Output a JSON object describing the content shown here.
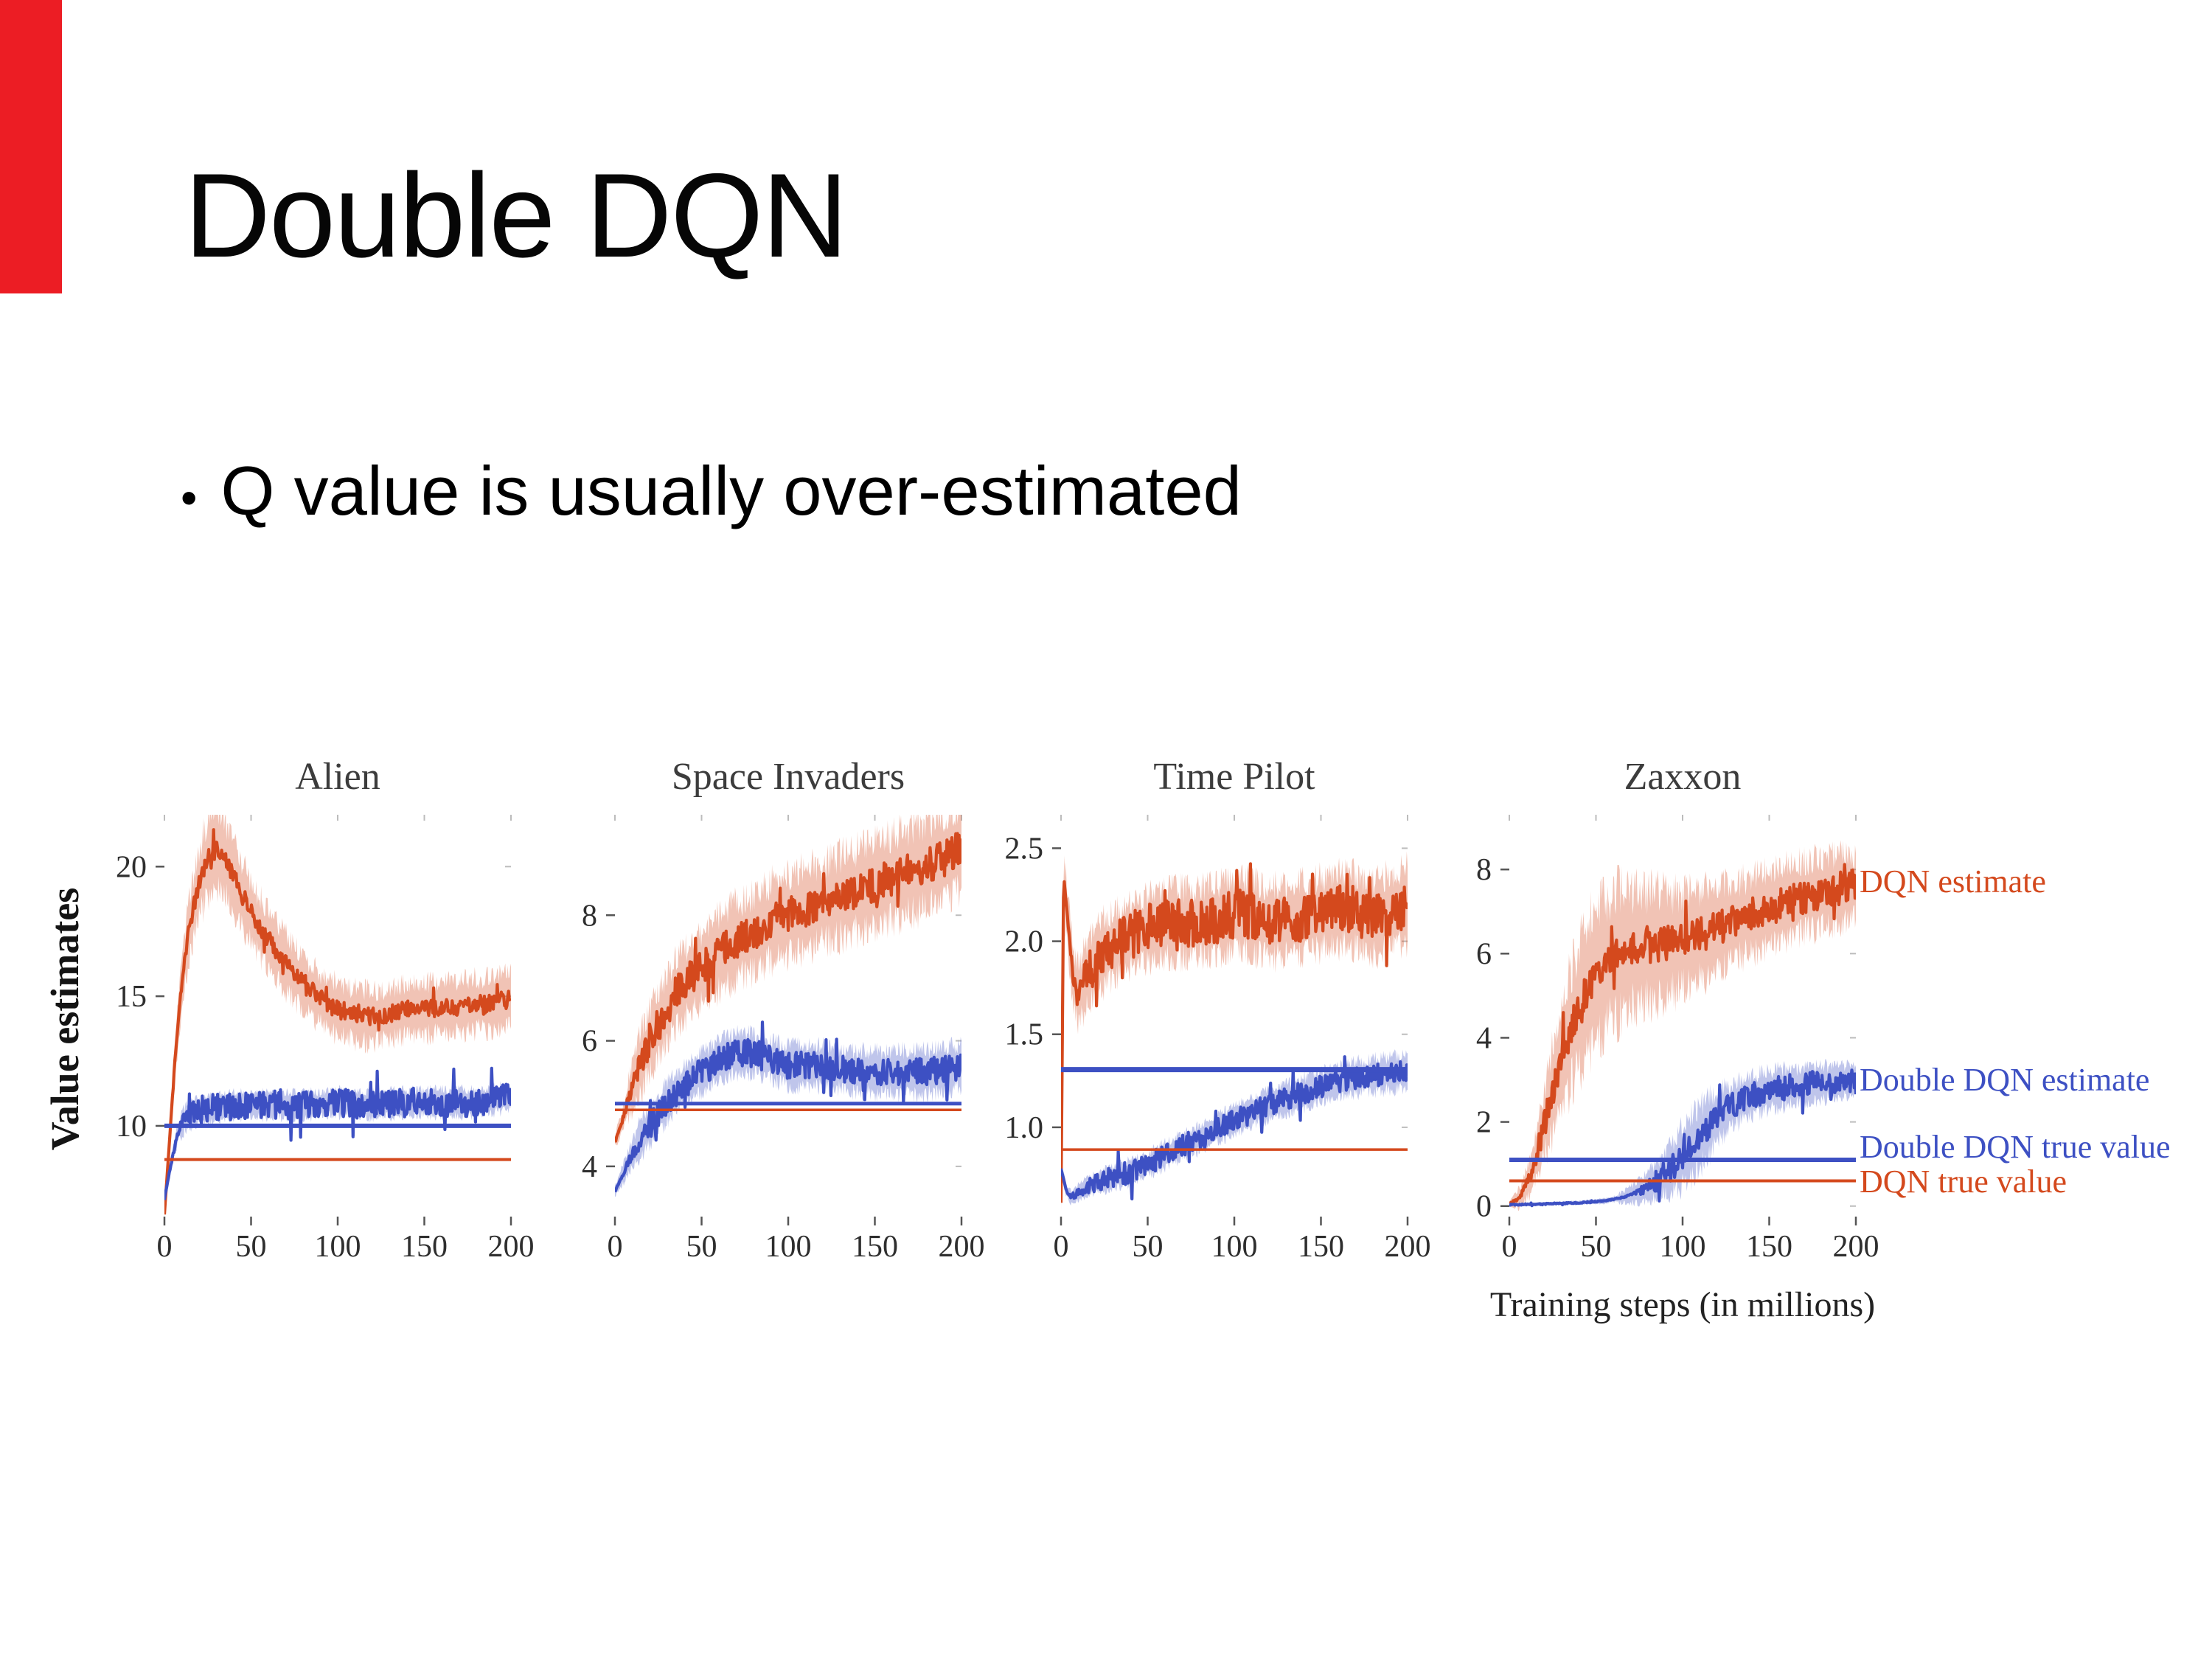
{
  "slide": {
    "title": "Double DQN",
    "bullet_char": "•",
    "bullet": "Q value is usually over-estimated",
    "accent_bar_color": "#ec1d24",
    "background": "#ffffff"
  },
  "figure": {
    "ylabel": "Value estimates",
    "xlabel": "Training steps (in millions)",
    "dqn_color": "#d4491d",
    "ddqn_color": "#3d50c3",
    "legend": [
      {
        "label": "DQN estimate",
        "color": "#d4491d",
        "anchor_y": 7.7
      },
      {
        "label": "Double DQN estimate",
        "color": "#3d50c3",
        "anchor_y": 3.0
      },
      {
        "label": "Double DQN true value",
        "color": "#3d50c3",
        "anchor_y": 1.4
      },
      {
        "label": "DQN true value",
        "color": "#d4491d",
        "anchor_y": 0.57
      }
    ]
  },
  "chart_data": [
    {
      "type": "line",
      "title": "Alien",
      "xlim": [
        0,
        200
      ],
      "ylim": [
        6.5,
        22
      ],
      "xticks": [
        0,
        50,
        100,
        150,
        200
      ],
      "xtick_labels": [
        "0",
        "50",
        "100",
        "150",
        "200"
      ],
      "yticks": [
        10,
        15,
        20
      ],
      "ytick_labels": [
        "10",
        "15",
        "20"
      ],
      "grid": false,
      "series": [
        {
          "name": "DQN estimate",
          "color": "#d4491d",
          "seed": 3,
          "noise": 0.35,
          "noise_start": 2,
          "x": [
            0,
            3,
            6,
            10,
            14,
            18,
            22,
            26,
            30,
            34,
            38,
            44,
            52,
            60,
            70,
            80,
            90,
            100,
            110,
            120,
            130,
            140,
            150,
            160,
            170,
            180,
            190,
            200
          ],
          "y": [
            6.6,
            9.5,
            12.5,
            15.5,
            17.5,
            18.8,
            19.8,
            20.4,
            20.7,
            20.4,
            19.9,
            19.0,
            18.0,
            17.2,
            16.3,
            15.5,
            14.9,
            14.5,
            14.3,
            14.2,
            14.3,
            14.5,
            14.5,
            14.6,
            14.6,
            14.7,
            14.7,
            15.0
          ],
          "band_profile": {
            "x": [
              0,
              8,
              25,
              50,
              90,
              200
            ],
            "w": [
              0.1,
              0.9,
              1.5,
              1.2,
              1.0,
              1.0
            ]
          }
        },
        {
          "name": "Double DQN estimate",
          "color": "#3d50c3",
          "seed": 7,
          "noise": 0.55,
          "noise_start": 2,
          "x": [
            0,
            4,
            8,
            12,
            20,
            30,
            40,
            60,
            80,
            100,
            120,
            140,
            160,
            180,
            200
          ],
          "y": [
            7.2,
            8.6,
            9.8,
            10.3,
            10.6,
            10.7,
            10.8,
            10.8,
            10.8,
            10.9,
            10.8,
            10.9,
            10.9,
            10.9,
            11.1
          ],
          "band_profile": {
            "x": [
              0,
              10,
              200
            ],
            "w": [
              0.08,
              0.45,
              0.5
            ]
          }
        }
      ],
      "hlines": [
        {
          "name": "Double DQN true value",
          "color": "#3d50c3",
          "y": 10.0,
          "width": 6
        },
        {
          "name": "DQN true value",
          "color": "#d4491d",
          "y": 8.7,
          "width": 4
        }
      ]
    },
    {
      "type": "line",
      "title": "Space Invaders",
      "xlim": [
        0,
        200
      ],
      "ylim": [
        3.2,
        9.6
      ],
      "xticks": [
        0,
        50,
        100,
        150,
        200
      ],
      "xtick_labels": [
        "0",
        "50",
        "100",
        "150",
        "200"
      ],
      "yticks": [
        4,
        6,
        8
      ],
      "ytick_labels": [
        "4",
        "6",
        "8"
      ],
      "grid": false,
      "series": [
        {
          "name": "DQN estimate",
          "color": "#d4491d",
          "seed": 13,
          "noise": 0.28,
          "noise_start": 2,
          "x": [
            0,
            4,
            8,
            14,
            20,
            28,
            36,
            44,
            52,
            60,
            70,
            80,
            90,
            100,
            110,
            120,
            130,
            140,
            150,
            160,
            170,
            180,
            190,
            200
          ],
          "y": [
            4.4,
            4.7,
            5.1,
            5.6,
            6.0,
            6.4,
            6.8,
            7.0,
            7.2,
            7.4,
            7.6,
            7.7,
            7.9,
            8.0,
            8.1,
            8.2,
            8.3,
            8.4,
            8.5,
            8.6,
            8.7,
            8.8,
            8.9,
            9.1
          ],
          "band_profile": {
            "x": [
              0,
              15,
              60,
              200
            ],
            "w": [
              0.1,
              0.5,
              0.6,
              0.7
            ]
          }
        },
        {
          "name": "Double DQN estimate",
          "color": "#3d50c3",
          "seed": 17,
          "noise": 0.22,
          "noise_start": 2,
          "x": [
            0,
            5,
            10,
            16,
            24,
            32,
            40,
            50,
            60,
            70,
            80,
            90,
            100,
            120,
            140,
            160,
            180,
            200
          ],
          "y": [
            3.6,
            3.9,
            4.2,
            4.5,
            4.8,
            5.1,
            5.3,
            5.5,
            5.7,
            5.8,
            5.8,
            5.7,
            5.6,
            5.6,
            5.5,
            5.5,
            5.5,
            5.6
          ],
          "band_profile": {
            "x": [
              0,
              15,
              200
            ],
            "w": [
              0.08,
              0.3,
              0.35
            ]
          }
        }
      ],
      "hlines": [
        {
          "name": "DQN true value",
          "color": "#d4491d",
          "y": 4.9,
          "width": 3.5
        },
        {
          "name": "Double DQN true value",
          "color": "#3d50c3",
          "y": 5.0,
          "width": 5
        }
      ]
    },
    {
      "type": "line",
      "title": "Time Pilot",
      "xlim": [
        0,
        200
      ],
      "ylim": [
        0.52,
        2.68
      ],
      "xticks": [
        0,
        50,
        100,
        150,
        200
      ],
      "xtick_labels": [
        "0",
        "50",
        "100",
        "150",
        "200"
      ],
      "yticks": [
        1.0,
        1.5,
        2.0,
        2.5
      ],
      "ytick_labels": [
        "1.0",
        "1.5",
        "2.0",
        "2.5"
      ],
      "grid": false,
      "series": [
        {
          "name": "DQN estimate",
          "color": "#d4491d",
          "seed": 23,
          "noise": 0.13,
          "noise_start": 2,
          "x": [
            0,
            1.5,
            4,
            7,
            10,
            15,
            20,
            26,
            34,
            44,
            54,
            64,
            76,
            90,
            105,
            120,
            135,
            150,
            165,
            180,
            200
          ],
          "y": [
            0.6,
            2.35,
            2.1,
            1.8,
            1.72,
            1.82,
            1.9,
            1.95,
            2.0,
            2.05,
            2.08,
            2.1,
            2.1,
            2.12,
            2.15,
            2.1,
            2.12,
            2.15,
            2.18,
            2.12,
            2.2
          ],
          "band_profile": {
            "x": [
              0,
              3,
              20,
              200
            ],
            "w": [
              0.05,
              0.15,
              0.18,
              0.2
            ]
          }
        },
        {
          "name": "Double DQN estimate",
          "color": "#3d50c3",
          "seed": 29,
          "noise": 0.06,
          "noise_start": 2,
          "x": [
            0,
            3,
            6,
            10,
            15,
            20,
            30,
            40,
            50,
            60,
            70,
            80,
            90,
            100,
            110,
            120,
            135,
            150,
            165,
            180,
            200
          ],
          "y": [
            0.78,
            0.66,
            0.62,
            0.65,
            0.68,
            0.7,
            0.73,
            0.76,
            0.8,
            0.85,
            0.9,
            0.94,
            0.99,
            1.04,
            1.08,
            1.12,
            1.17,
            1.22,
            1.26,
            1.28,
            1.3
          ],
          "band_profile": {
            "x": [
              0,
              30,
              200
            ],
            "w": [
              0.03,
              0.06,
              0.09
            ]
          }
        }
      ],
      "hlines": [
        {
          "name": "Double DQN true value",
          "color": "#3d50c3",
          "y": 1.31,
          "width": 7
        },
        {
          "name": "DQN true value",
          "color": "#d4491d",
          "y": 0.88,
          "width": 3.5
        }
      ]
    },
    {
      "type": "line",
      "title": "Zaxxon",
      "xlim": [
        0,
        200
      ],
      "ylim": [
        -0.25,
        9.3
      ],
      "xticks": [
        0,
        50,
        100,
        150,
        200
      ],
      "xtick_labels": [
        "0",
        "50",
        "100",
        "150",
        "200"
      ],
      "yticks": [
        0,
        2,
        4,
        6,
        8
      ],
      "ytick_labels": [
        "0",
        "2",
        "4",
        "6",
        "8"
      ],
      "grid": false,
      "series": [
        {
          "name": "DQN estimate",
          "color": "#d4491d",
          "seed": 31,
          "noise": 0.4,
          "noise_start": 5,
          "x": [
            0,
            6,
            12,
            18,
            24,
            30,
            36,
            42,
            48,
            54,
            60,
            68,
            76,
            85,
            95,
            105,
            115,
            125,
            135,
            145,
            155,
            165,
            175,
            185,
            200
          ],
          "y": [
            0.05,
            0.2,
            0.7,
            1.6,
            2.6,
            3.5,
            4.3,
            4.9,
            5.4,
            5.7,
            5.95,
            6.1,
            6.15,
            6.2,
            6.25,
            6.4,
            6.5,
            6.7,
            6.85,
            7.0,
            7.15,
            7.3,
            7.4,
            7.5,
            7.6
          ],
          "band_profile": {
            "x": [
              0,
              15,
              30,
              50,
              90,
              130,
              200
            ],
            "w": [
              0.05,
              0.5,
              1.3,
              1.6,
              1.2,
              0.9,
              0.8
            ]
          }
        },
        {
          "name": "Double DQN estimate",
          "color": "#3d50c3",
          "seed": 37,
          "noise": 0.3,
          "noise_start": 70,
          "x": [
            0,
            20,
            40,
            55,
            65,
            75,
            85,
            95,
            105,
            115,
            125,
            135,
            145,
            155,
            165,
            175,
            185,
            200
          ],
          "y": [
            0.03,
            0.05,
            0.08,
            0.12,
            0.2,
            0.35,
            0.6,
            0.95,
            1.4,
            1.9,
            2.3,
            2.55,
            2.7,
            2.8,
            2.85,
            2.9,
            2.95,
            3.0
          ],
          "band_profile": {
            "x": [
              0,
              60,
              85,
              105,
              130,
              200
            ],
            "w": [
              0.02,
              0.06,
              0.4,
              0.8,
              0.5,
              0.35
            ]
          }
        }
      ],
      "hlines": [
        {
          "name": "Double DQN true value",
          "color": "#3d50c3",
          "y": 1.1,
          "width": 6
        },
        {
          "name": "DQN true value",
          "color": "#d4491d",
          "y": 0.6,
          "width": 4
        }
      ]
    }
  ]
}
